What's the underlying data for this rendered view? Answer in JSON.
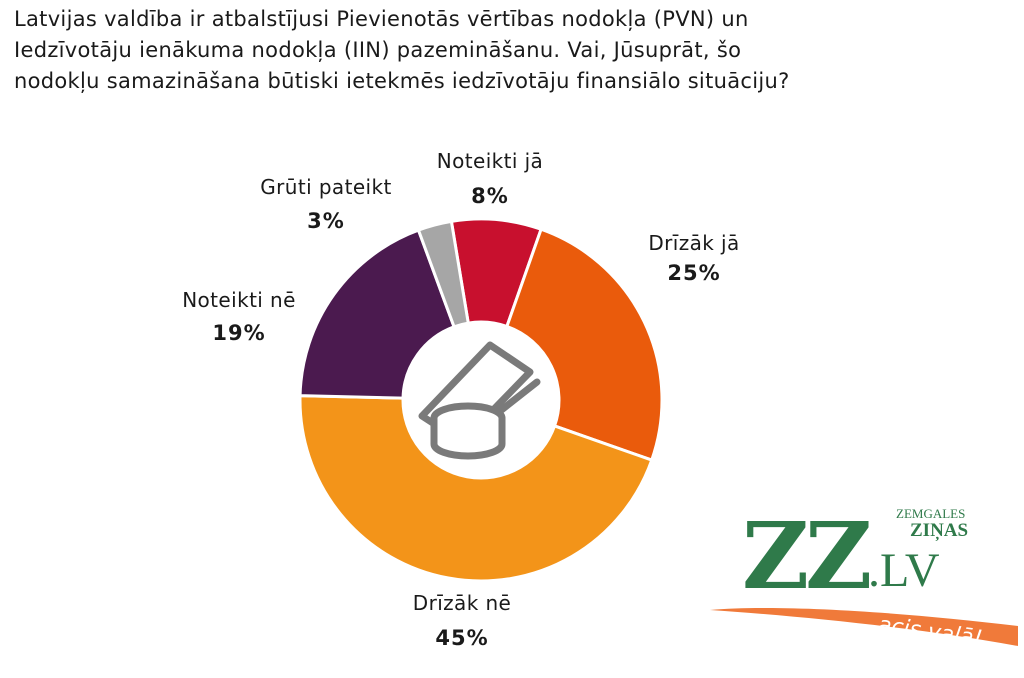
{
  "title_lines": [
    "Latvijas valdība ir atbalstījusi Pievienotās vērtības nodokļa (PVN) un",
    "Iedzīvotāju ienākuma nodokļa (IIN) pazemināšanu. Vai, Jūsuprāt, šo",
    "nodokļu samazināšana būtiski ietekmēs iedzīvotāju finansiālo situāciju?"
  ],
  "chart_data": {
    "type": "pie",
    "donut": true,
    "unit": "%",
    "slices": [
      {
        "label": "Noteikti jā",
        "value": 8,
        "value_label": "8%",
        "color": "#c8102e"
      },
      {
        "label": "Drīzāk jā",
        "value": 25,
        "value_label": "25%",
        "color": "#ea5b0c"
      },
      {
        "label": "Drīzāk nē",
        "value": 45,
        "value_label": "45%",
        "color": "#f39419"
      },
      {
        "label": "Noteikti nē",
        "value": 19,
        "value_label": "19%",
        "color": "#4b1a4f"
      },
      {
        "label": "Grūti pateikt",
        "value": 3,
        "value_label": "3%",
        "color": "#a6a6a6"
      }
    ],
    "center_icon": "coins-and-banknote-icon"
  },
  "logo": {
    "main": "ZZ",
    "dot_lv": ".LV",
    "top_word_1": "ZEMGALES",
    "top_word_2": "ZIŅAS",
    "tagline": "acis vaļā!",
    "green": "#2f7a4a",
    "orange": "#f07a3a"
  }
}
